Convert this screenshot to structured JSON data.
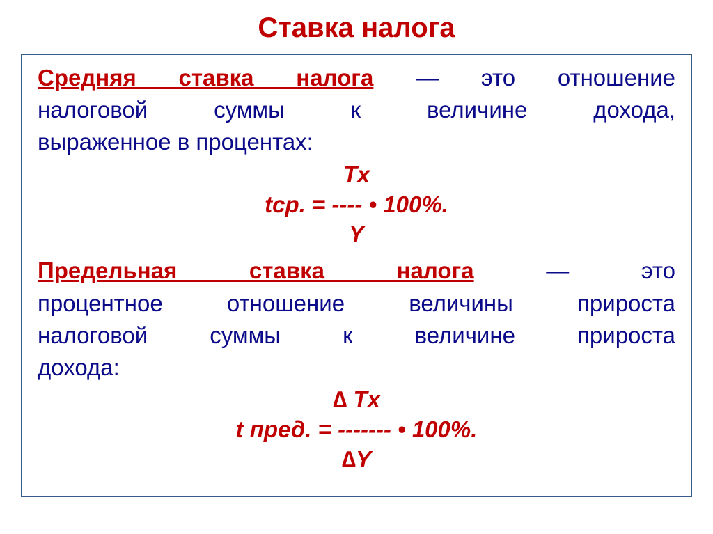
{
  "colors": {
    "title": "#c00000",
    "term": "#c00000",
    "body": "#0b0b8a",
    "formula": "#c00000",
    "border": "#385d8a",
    "background": "#ffffff"
  },
  "fonts": {
    "title_size": 40,
    "body_size": 33,
    "formula_size": 33
  },
  "title": "Ставка налога",
  "def1": {
    "term": "Средняя ставка налога",
    "rest_line1": " — это отношение",
    "line2": "налоговой суммы к величине дохода,",
    "line3": "выраженное в процентах:"
  },
  "formula1": {
    "numerator": "Tx",
    "lhs": "tср.  = ",
    "dash": "----",
    "rhs": "  • 100%.",
    "denominator": "Y"
  },
  "def2": {
    "term": "Предельная ставка налога",
    "rest_line1": " — это",
    "line2": "процентное отношение величины прироста",
    "line3": "налоговой суммы к величине прироста",
    "line4": "дохода:"
  },
  "formula2": {
    "numerator": "∆ Tx",
    "lhs": "t пред. = ",
    "dash": "-------",
    "rhs": " • 100%.",
    "denominator": "∆Y"
  }
}
